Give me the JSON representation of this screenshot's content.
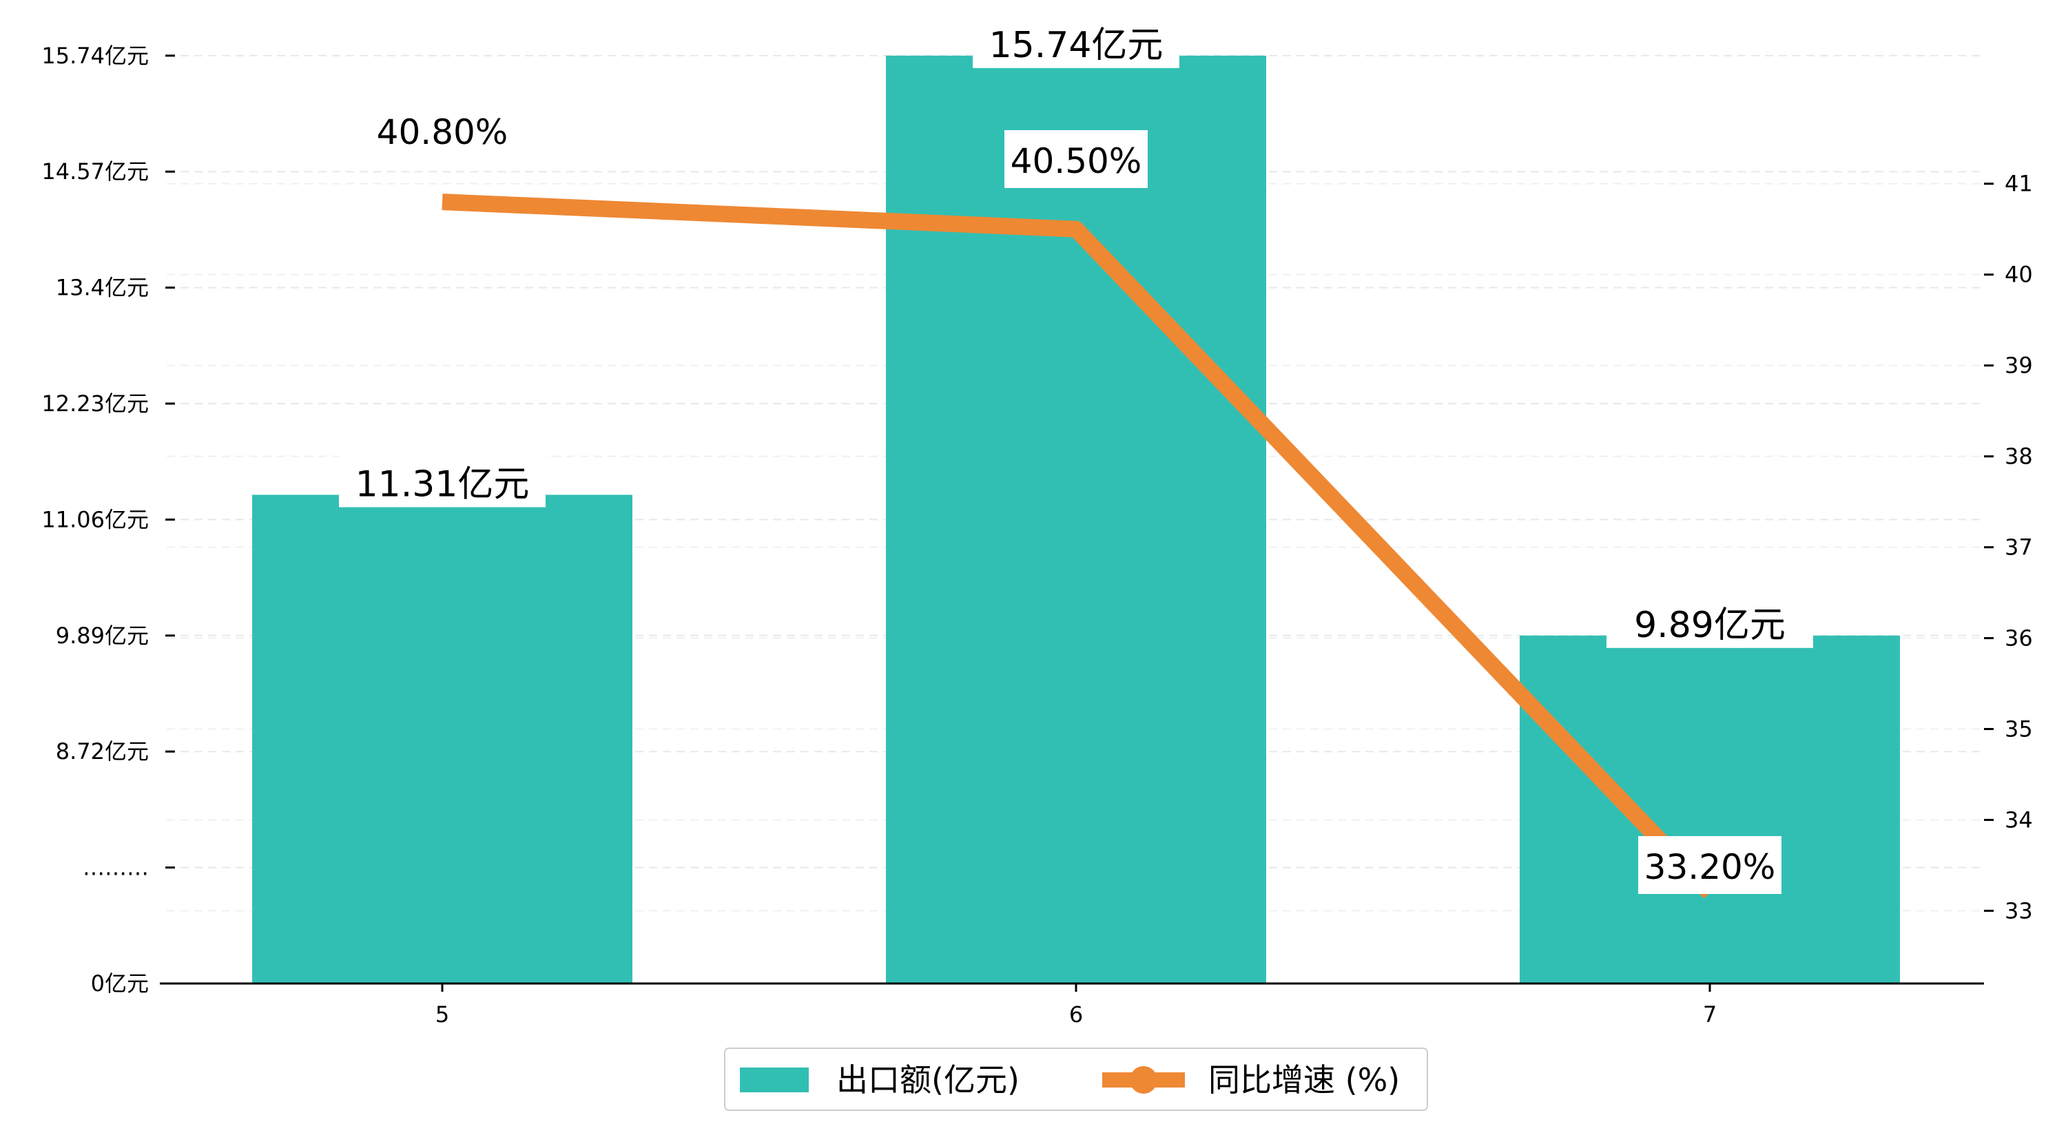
{
  "chart_data": {
    "type": "bar",
    "categories": [
      "5",
      "6",
      "7"
    ],
    "series": [
      {
        "name": "出口额(亿元)",
        "type": "bar",
        "values": [
          11.31,
          15.74,
          9.89
        ],
        "labels": [
          "11.31亿元",
          "15.74亿元",
          "9.89亿元"
        ],
        "color": "#32bfb3"
      },
      {
        "name": "同比增速 (%)",
        "type": "line",
        "axis": "right",
        "values": [
          40.8,
          40.5,
          33.2
        ],
        "labels": [
          "40.80%",
          "40.50%",
          "33.20%"
        ],
        "color": "#ee8833"
      }
    ],
    "left_axis": {
      "tick_labels": [
        "0亿元",
        "………",
        "8.72亿元",
        "9.89亿元",
        "11.06亿元",
        "12.23亿元",
        "13.4亿元",
        "14.57亿元",
        "15.74亿元"
      ],
      "broken": true,
      "segment_range": [
        7.55,
        15.74
      ]
    },
    "right_axis": {
      "ticks": [
        33,
        34,
        35,
        36,
        37,
        38,
        39,
        40,
        41
      ],
      "range": [
        32.2,
        42.4
      ]
    },
    "grid": "horizontal dashed",
    "legend_position": "bottom-center"
  }
}
